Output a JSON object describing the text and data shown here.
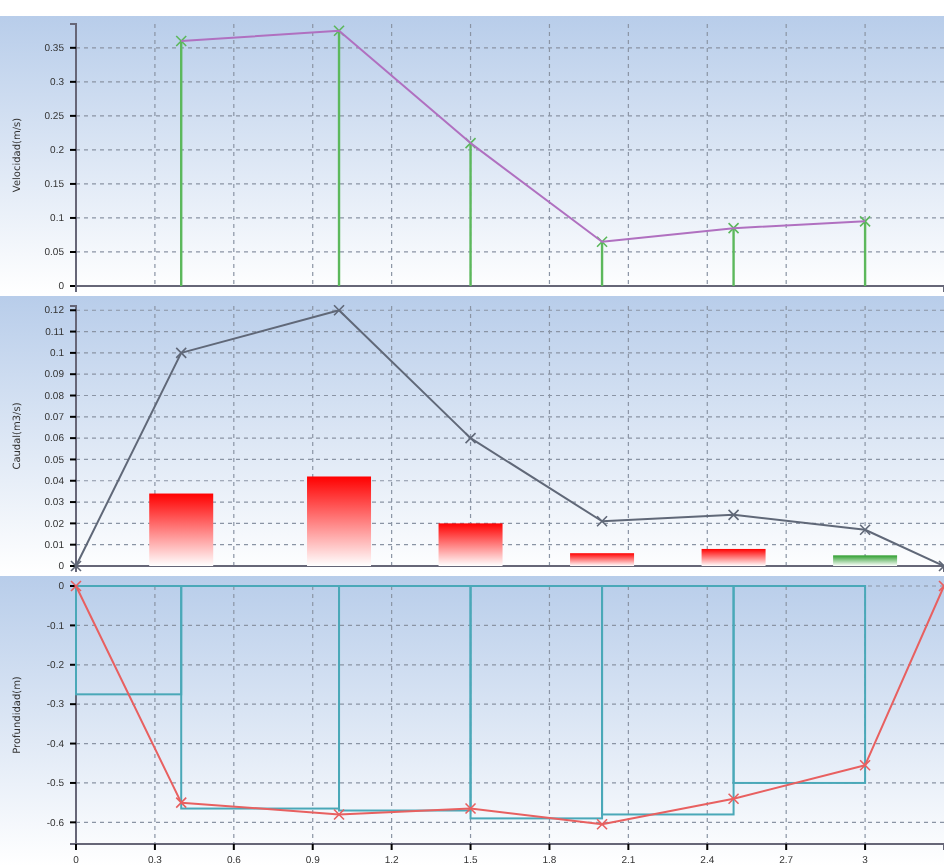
{
  "chart_data": [
    {
      "type": "line",
      "ylabel": "Velocidad(m/s)",
      "xlim": [
        0,
        3.3
      ],
      "ylim": [
        0,
        0.385
      ],
      "yticks": [
        0,
        0.05,
        0.1,
        0.15,
        0.2,
        0.25,
        0.3,
        0.35
      ],
      "grid": true,
      "tick_labels": "y",
      "marker": "cross",
      "series": [
        {
          "type": "lollipop",
          "color": "#5cb85c",
          "x": [
            0.4,
            1.0,
            1.5,
            2.0,
            2.5,
            3.0
          ],
          "values": [
            0.36,
            0.375,
            0.21,
            0.065,
            0.085,
            0.095
          ]
        },
        {
          "color": "#b070c0",
          "marker": "none",
          "x": [
            0.4,
            1.0,
            1.5,
            2.0,
            2.5,
            3.0
          ],
          "values": [
            0.36,
            0.375,
            0.21,
            0.065,
            0.085,
            0.095
          ]
        }
      ]
    },
    {
      "type": "bar",
      "ylabel": "Caudal(m3/s)",
      "xlim": [
        0,
        3.3
      ],
      "ylim": [
        0,
        0.122
      ],
      "yticks": [
        0,
        0.01,
        0.02,
        0.03,
        0.04,
        0.05,
        0.06,
        0.07,
        0.08,
        0.09,
        0.1,
        0.11,
        0.12
      ],
      "grid": true,
      "tick_labels": "y",
      "marker": "cross",
      "series": [
        {
          "x": [
            0.4,
            1.0,
            1.5,
            2.0,
            2.5,
            3.0
          ],
          "values": [
            0.034,
            0.042,
            0.02,
            0.006,
            0.008,
            0.005
          ],
          "colors": [
            "#ff0000",
            "#ff0000",
            "#ff0000",
            "#ff0000",
            "#ff0000",
            "#2e9e2e"
          ]
        },
        {
          "type": "line",
          "color": "#606878",
          "x": [
            0,
            0.4,
            1.0,
            1.5,
            2.0,
            2.5,
            3.0,
            3.3
          ],
          "values": [
            0,
            0.1,
            0.12,
            0.06,
            0.021,
            0.024,
            0.017,
            0
          ]
        }
      ]
    },
    {
      "type": "line",
      "ylabel": "Profundidad(m)",
      "xlim": [
        0,
        3.3
      ],
      "ylim": [
        -0.655,
        0
      ],
      "xticks": [
        0,
        0.3,
        0.6,
        0.9,
        1.2,
        1.5,
        1.8,
        2.1,
        2.4,
        2.7,
        3
      ],
      "yticks": [
        -0.6,
        -0.5,
        -0.4,
        -0.3,
        -0.2,
        -0.1,
        0
      ],
      "grid": true,
      "marker": "cross",
      "series": [
        {
          "type": "histogram",
          "color": "#4aa8b8",
          "bins": [
            0,
            0.4,
            1.0,
            1.5,
            2.0,
            2.5,
            3.0
          ],
          "values": [
            -0.275,
            -0.565,
            -0.57,
            -0.59,
            -0.58,
            -0.5
          ]
        },
        {
          "color": "#e86060",
          "x": [
            0,
            0.4,
            1.0,
            1.5,
            2.0,
            2.5,
            3.0,
            3.3
          ],
          "values": [
            0,
            -0.55,
            -0.58,
            -0.565,
            -0.605,
            -0.54,
            -0.455,
            0
          ]
        }
      ]
    }
  ]
}
